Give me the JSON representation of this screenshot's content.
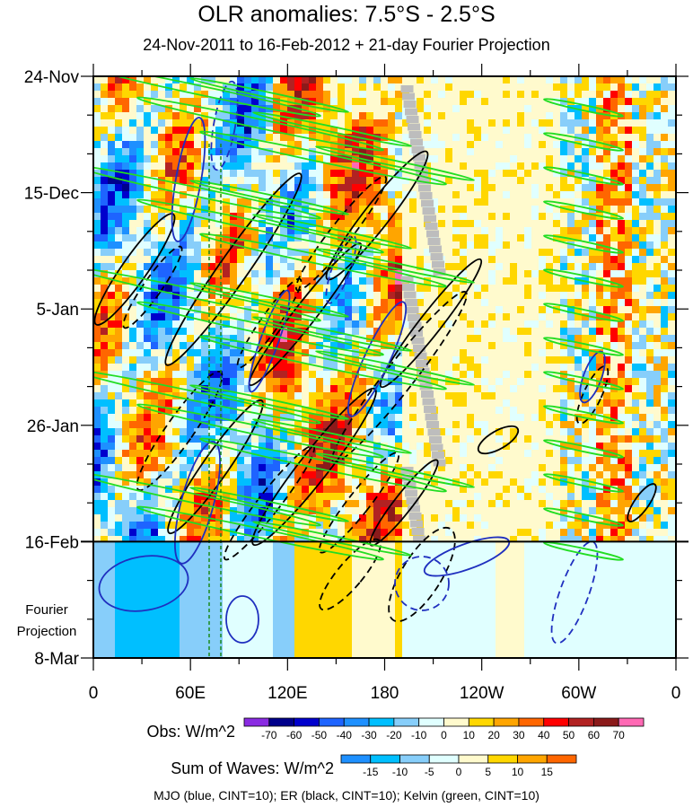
{
  "chart_data": {
    "type": "heatmap",
    "title": "OLR anomalies: 7.5°S - 2.5°S",
    "subtitle": "24-Nov-2011 to 16-Feb-2012 + 21-day Fourier Projection",
    "x_ticks": [
      "0",
      "60E",
      "120E",
      "180",
      "120W",
      "60W",
      "0"
    ],
    "x_range_deg_east": [
      0,
      360
    ],
    "y_ticks": [
      "24-Nov",
      "15-Dec",
      "5-Jan",
      "26-Jan",
      "16-Feb",
      "8-Mar"
    ],
    "y_range": [
      "2011-11-24",
      "2012-03-08"
    ],
    "observation_end": "2012-02-16",
    "projection_label": "Fourier Projection",
    "obs_colorbar": {
      "title": "Obs: W/m^2",
      "levels": [
        -70,
        -60,
        -50,
        -40,
        -30,
        -20,
        -10,
        0,
        10,
        20,
        30,
        40,
        50,
        60,
        70
      ],
      "colors": [
        "#8a2be2",
        "#00008b",
        "#0000cd",
        "#1e64ff",
        "#1e90ff",
        "#00bfff",
        "#87cefa",
        "#e0ffff",
        "#fffacd",
        "#ffd700",
        "#ffa500",
        "#ff6600",
        "#ff0000",
        "#b22222",
        "#8b1a1a",
        "#ff69b4"
      ]
    },
    "waves_colorbar": {
      "title": "Sum of Waves: W/m^2",
      "levels": [
        -15,
        -10,
        -5,
        0,
        5,
        10,
        15
      ],
      "colors": [
        "#1e90ff",
        "#00bfff",
        "#87cefa",
        "#e0ffff",
        "#fffacd",
        "#ffd700",
        "#ffa500",
        "#ff6600"
      ]
    },
    "contour_legend": "MJO (blue, CINT=10); ER (black, CINT=10); Kelvin (green, CINT=10)",
    "contour_colors": {
      "mjo": "#1f2fbf",
      "er": "#000000",
      "kelvin": "#22dd22"
    }
  }
}
